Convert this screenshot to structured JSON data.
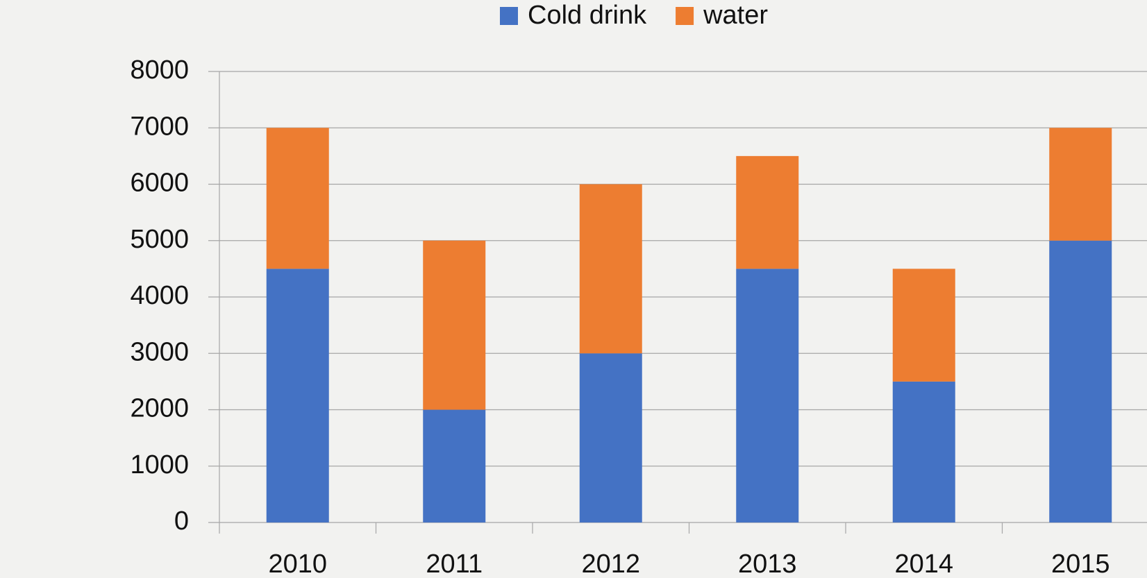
{
  "chart_data": {
    "type": "stacked_bar",
    "categories": [
      "2010",
      "2011",
      "2012",
      "2013",
      "2014",
      "2015"
    ],
    "series": [
      {
        "name": "Cold drink",
        "color": "#4472c4",
        "values": [
          4500,
          2000,
          3000,
          4500,
          2500,
          5000
        ]
      },
      {
        "name": "water",
        "color": "#ed7d31",
        "values": [
          2500,
          3000,
          3000,
          2000,
          2000,
          2000
        ]
      }
    ],
    "ylim": [
      0,
      8000
    ],
    "yticks": [
      0,
      1000,
      2000,
      3000,
      4000,
      5000,
      6000,
      7000,
      8000
    ],
    "grid": true,
    "legend": "top"
  }
}
